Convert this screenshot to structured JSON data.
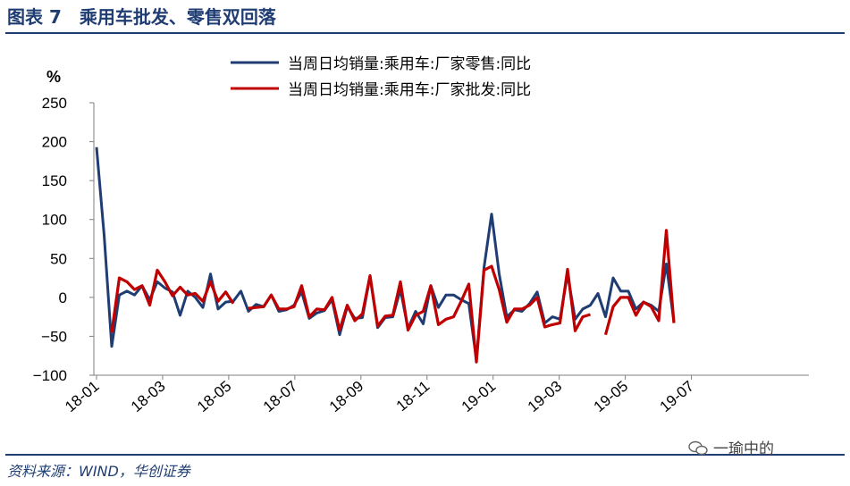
{
  "header": {
    "title": "图表 7　乘用车批发、零售双回落"
  },
  "footer": {
    "source": "资料来源：WIND，华创证券",
    "watermark": "一瑜中的",
    "watermark_icon": "wechat-icon"
  },
  "chart_data": {
    "type": "line",
    "ylabel": "%",
    "ylim": [
      -100,
      250
    ],
    "yticks": [
      "250",
      "200",
      "150",
      "100",
      "50",
      "0",
      "−50",
      "−100"
    ],
    "x_tick_labels": [
      "18-01",
      "18-03",
      "18-05",
      "18-07",
      "18-09",
      "18-11",
      "19-01",
      "19-03",
      "19-05",
      "19-07"
    ],
    "grid": false,
    "legend_position": "top-center",
    "series": [
      {
        "name": "当周日均销量:乘用车:厂家零售:同比",
        "color": "#1f3d73",
        "values": [
          193,
          80,
          -63,
          3,
          8,
          3,
          15,
          -3,
          20,
          12,
          7,
          -23,
          8,
          0,
          -13,
          30,
          -15,
          -6,
          -5,
          8,
          -18,
          -9,
          -12,
          3,
          -18,
          -16,
          -10,
          7,
          -27,
          -20,
          -17,
          -3,
          -48,
          -12,
          -27,
          -26,
          27,
          -39,
          -26,
          -25,
          10,
          -40,
          -18,
          -34,
          15,
          -13,
          3,
          3,
          -3,
          -8,
          -80,
          38,
          107,
          30,
          -25,
          -16,
          -18,
          -8,
          7,
          -33,
          -25,
          -28,
          30,
          -28,
          -15,
          -10,
          5,
          -25,
          25,
          8,
          8,
          -15,
          -6,
          -10,
          -18,
          43,
          -32
        ]
      },
      {
        "name": "当周日均销量:乘用车:厂家批发:同比",
        "color": "#c00000",
        "values": [
          null,
          null,
          -45,
          25,
          20,
          10,
          15,
          -10,
          35,
          20,
          2,
          13,
          3,
          5,
          -5,
          20,
          -5,
          7,
          -8,
          null,
          -14,
          -13,
          -12,
          3,
          -15,
          -15,
          -12,
          15,
          -25,
          -15,
          -16,
          0,
          -42,
          -10,
          -30,
          -21,
          28,
          -37,
          -24,
          -23,
          20,
          -42,
          -23,
          -18,
          15,
          -35,
          -28,
          -25,
          -5,
          17,
          -83,
          35,
          40,
          10,
          -32,
          -15,
          -15,
          -10,
          0,
          -38,
          -35,
          -33,
          36,
          -43,
          -25,
          -22,
          null,
          -48,
          -12,
          0,
          0,
          -23,
          -6,
          -12,
          -30,
          86,
          -33
        ]
      }
    ]
  }
}
